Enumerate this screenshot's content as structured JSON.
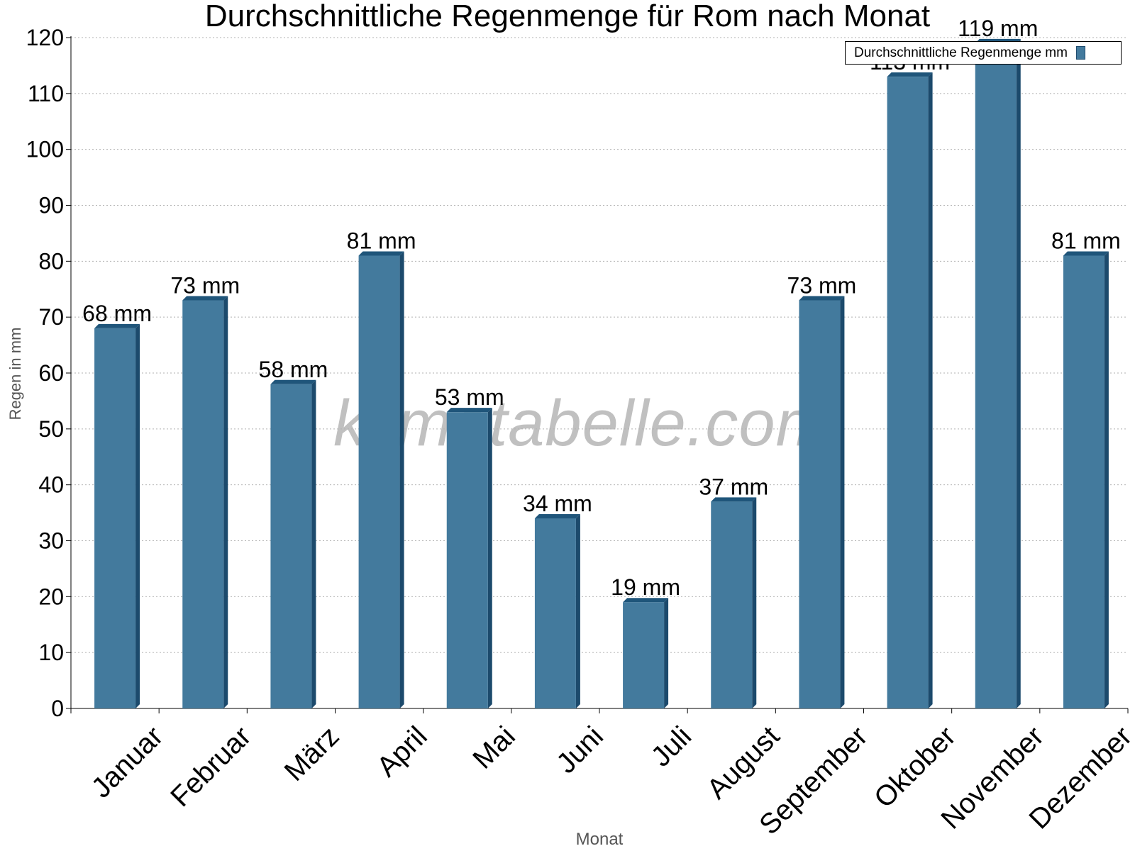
{
  "chart_data": {
    "type": "bar",
    "title": "Durchschnittliche Regenmenge für Rom nach Monat",
    "xlabel": "Monat",
    "ylabel": "Regen in mm",
    "categories": [
      "Januar",
      "Februar",
      "März",
      "April",
      "Mai",
      "Juni",
      "Juli",
      "August",
      "September",
      "Oktober",
      "November",
      "Dezember"
    ],
    "series": [
      {
        "name": "Durchschnittliche Regenmenge mm",
        "values": [
          68,
          73,
          58,
          81,
          53,
          34,
          19,
          37,
          73,
          113,
          119,
          81
        ],
        "color": "#437a9d"
      }
    ],
    "data_labels": [
      "68 mm",
      "73 mm",
      "58 mm",
      "81 mm",
      "53 mm",
      "34 mm",
      "19 mm",
      "37 mm",
      "73 mm",
      "113 mm",
      "119 mm",
      "81 mm"
    ],
    "ylim": [
      0,
      120
    ],
    "yticks": [
      0,
      10,
      20,
      30,
      40,
      50,
      60,
      70,
      80,
      90,
      100,
      110,
      120
    ],
    "grid": true,
    "legend_position": "top-right"
  },
  "watermark": "klimatabelle.com"
}
